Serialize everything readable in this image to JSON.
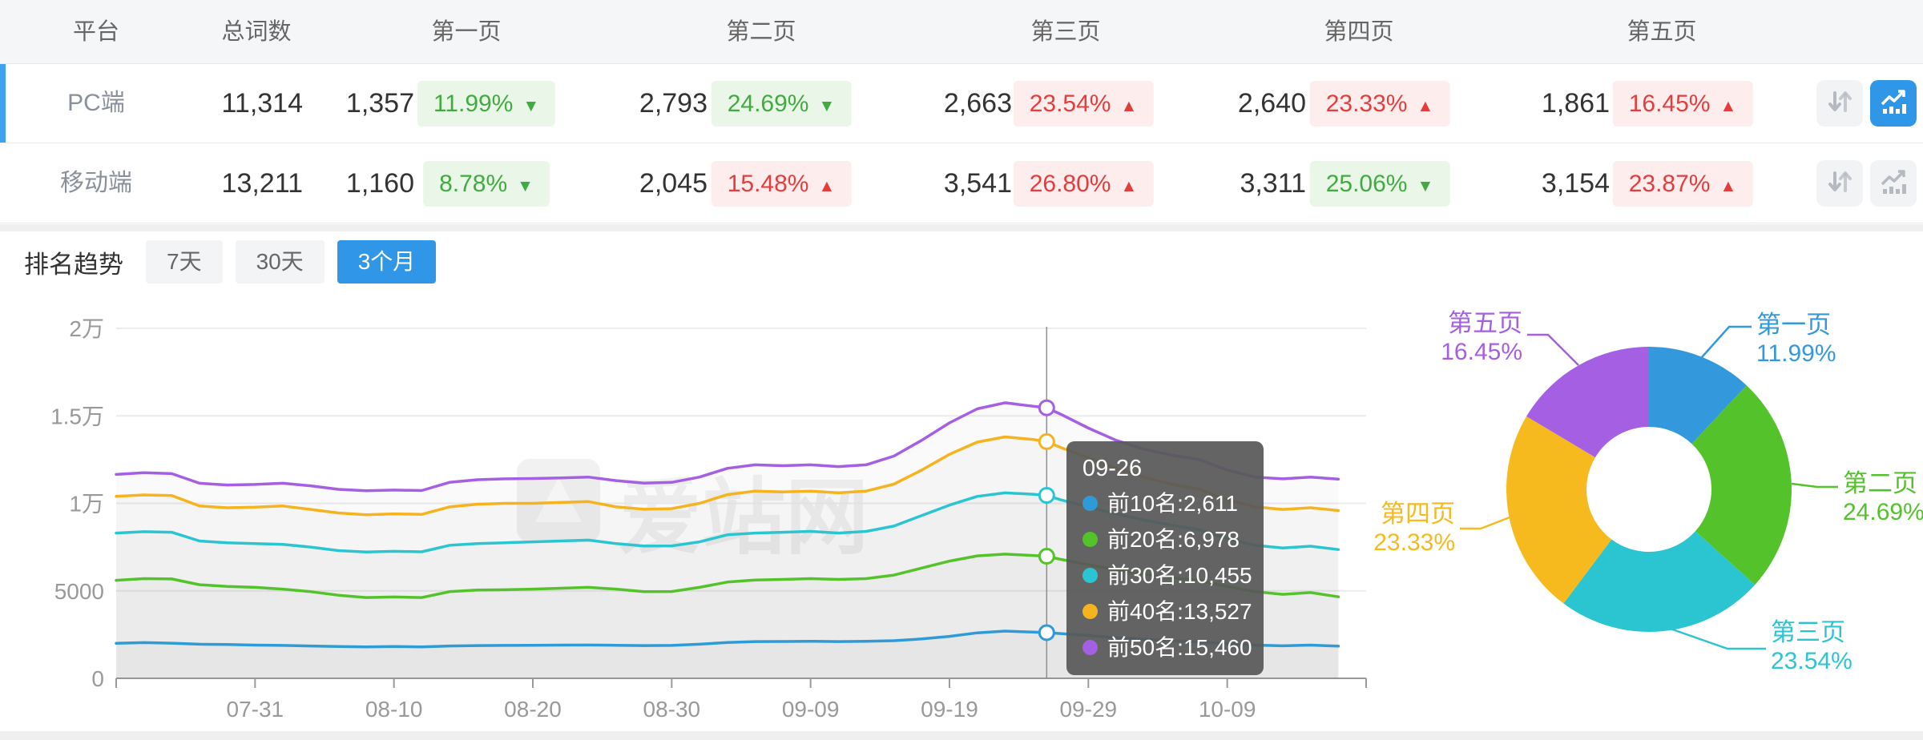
{
  "glyphs": {
    "arrow_up": "▲",
    "arrow_down": "▼"
  },
  "colors": {
    "accent": "#2f96e8",
    "active_row_border": "#3fa2f1",
    "badge_up_text": "#e43d3d",
    "badge_up_bg": "#fdeded",
    "badge_down_text": "#41ab41",
    "badge_down_bg": "#eaf7e8",
    "series_blue": "#2e9bd6",
    "series_green": "#54c32b",
    "series_cyan": "#2bc5d2",
    "series_yellow": "#f6b320",
    "series_purple": "#a55fe2"
  },
  "watermark": "爱站网",
  "table": {
    "headers": [
      "平台",
      "总词数",
      "第一页",
      "第二页",
      "第三页",
      "第四页",
      "第五页"
    ],
    "rows": [
      {
        "platform": "PC端",
        "total": "11,314",
        "active": true,
        "pages": [
          {
            "count": "1,357",
            "pct": "11.99%",
            "trend": "down"
          },
          {
            "count": "2,793",
            "pct": "24.69%",
            "trend": "down"
          },
          {
            "count": "2,663",
            "pct": "23.54%",
            "trend": "up"
          },
          {
            "count": "2,640",
            "pct": "23.33%",
            "trend": "up"
          },
          {
            "count": "1,861",
            "pct": "16.45%",
            "trend": "up"
          }
        ]
      },
      {
        "platform": "移动端",
        "total": "13,211",
        "active": false,
        "pages": [
          {
            "count": "1,160",
            "pct": "8.78%",
            "trend": "down"
          },
          {
            "count": "2,045",
            "pct": "15.48%",
            "trend": "up"
          },
          {
            "count": "3,541",
            "pct": "26.80%",
            "trend": "up"
          },
          {
            "count": "3,311",
            "pct": "25.06%",
            "trend": "down"
          },
          {
            "count": "3,154",
            "pct": "23.87%",
            "trend": "up"
          }
        ]
      }
    ]
  },
  "trend": {
    "title": "排名趋势",
    "tabs": [
      "7天",
      "30天",
      "3个月"
    ],
    "active_tab": "3个月"
  },
  "tooltip": {
    "date": "09-26",
    "separator": ": ",
    "items": [
      {
        "label": "前10名",
        "value": "2,611",
        "color": "#2e9bd6"
      },
      {
        "label": "前20名",
        "value": "6,978",
        "color": "#54c32b"
      },
      {
        "label": "前30名",
        "value": "10,455",
        "color": "#2bc5d2"
      },
      {
        "label": "前40名",
        "value": "13,527",
        "color": "#f6b320"
      },
      {
        "label": "前50名",
        "value": "15,460",
        "color": "#a55fe2"
      }
    ]
  },
  "chart_data": [
    {
      "type": "line",
      "title": "排名趋势 3个月",
      "ylim": [
        0,
        20000
      ],
      "grid": true,
      "y_ticks": [
        {
          "v": 0,
          "label": "0"
        },
        {
          "v": 5000,
          "label": "5000"
        },
        {
          "v": 10000,
          "label": "1万"
        },
        {
          "v": 15000,
          "label": "1.5万"
        },
        {
          "v": 20000,
          "label": "2万"
        }
      ],
      "x_tick_labels": [
        "07-31",
        "08-10",
        "08-20",
        "08-30",
        "09-09",
        "09-19",
        "09-29",
        "10-09"
      ],
      "x_tick_days": [
        10,
        20,
        30,
        40,
        50,
        60,
        70,
        80
      ],
      "x_range_days": [
        0,
        88
      ],
      "hover_day": 67,
      "hover_date": "09-26",
      "days": [
        0,
        2,
        4,
        6,
        8,
        10,
        12,
        14,
        16,
        18,
        20,
        22,
        24,
        26,
        28,
        30,
        32,
        34,
        36,
        38,
        40,
        42,
        44,
        46,
        48,
        50,
        52,
        54,
        56,
        58,
        60,
        62,
        64,
        66,
        67,
        68,
        70,
        72,
        74,
        76,
        78,
        80,
        82,
        84,
        86,
        88
      ],
      "series": [
        {
          "name": "前10名",
          "color": "#2e9bd6",
          "values": [
            2000,
            2040,
            2010,
            1950,
            1930,
            1900,
            1880,
            1850,
            1820,
            1800,
            1815,
            1800,
            1850,
            1870,
            1880,
            1890,
            1900,
            1905,
            1890,
            1870,
            1880,
            1950,
            2050,
            2100,
            2105,
            2120,
            2100,
            2120,
            2150,
            2250,
            2400,
            2600,
            2700,
            2640,
            2611,
            2560,
            2450,
            2330,
            2230,
            2150,
            2080,
            1980,
            1900,
            1860,
            1900,
            1840
          ]
        },
        {
          "name": "前20名",
          "color": "#54c32b",
          "values": [
            5600,
            5700,
            5680,
            5350,
            5250,
            5200,
            5100,
            4950,
            4750,
            4620,
            4650,
            4620,
            4950,
            5050,
            5060,
            5100,
            5150,
            5200,
            5100,
            4950,
            4960,
            5200,
            5500,
            5620,
            5650,
            5700,
            5650,
            5700,
            5900,
            6300,
            6700,
            7000,
            7100,
            7020,
            6978,
            6800,
            6500,
            6200,
            5950,
            5750,
            5600,
            5250,
            4950,
            4800,
            4900,
            4660
          ]
        },
        {
          "name": "前30名",
          "color": "#2bc5d2",
          "values": [
            8300,
            8380,
            8350,
            7850,
            7750,
            7700,
            7650,
            7500,
            7300,
            7220,
            7260,
            7230,
            7600,
            7700,
            7750,
            7800,
            7850,
            7900,
            7700,
            7560,
            7570,
            7800,
            8200,
            8300,
            8350,
            8400,
            8300,
            8400,
            8700,
            9300,
            9900,
            10400,
            10600,
            10520,
            10455,
            10200,
            9800,
            9400,
            9050,
            8750,
            8500,
            8000,
            7600,
            7450,
            7550,
            7360
          ]
        },
        {
          "name": "前40名",
          "color": "#f6b320",
          "values": [
            10400,
            10480,
            10450,
            9850,
            9750,
            9780,
            9850,
            9650,
            9450,
            9350,
            9400,
            9370,
            9800,
            9950,
            10000,
            10000,
            10050,
            10100,
            9800,
            9660,
            9700,
            10000,
            10500,
            10700,
            10650,
            10700,
            10600,
            10700,
            11100,
            11900,
            12800,
            13500,
            13800,
            13650,
            13527,
            13200,
            12600,
            12000,
            11500,
            11100,
            10800,
            10200,
            9800,
            9650,
            9750,
            9590
          ]
        },
        {
          "name": "前50名",
          "color": "#a55fe2",
          "values": [
            11650,
            11750,
            11700,
            11150,
            11050,
            11080,
            11150,
            11000,
            10800,
            10720,
            10760,
            10730,
            11200,
            11350,
            11400,
            11420,
            11450,
            11500,
            11300,
            11160,
            11200,
            11500,
            12000,
            12200,
            12150,
            12200,
            12100,
            12200,
            12700,
            13600,
            14600,
            15400,
            15750,
            15550,
            15460,
            15100,
            14300,
            13600,
            13100,
            12750,
            12500,
            11900,
            11500,
            11400,
            11500,
            11380
          ]
        }
      ]
    },
    {
      "type": "pie",
      "donut": true,
      "categories": [
        "第一页",
        "第二页",
        "第三页",
        "第四页",
        "第五页"
      ],
      "values": [
        11.99,
        24.69,
        23.54,
        23.33,
        16.45
      ],
      "labels": [
        "11.99%",
        "24.69%",
        "23.54%",
        "23.33%",
        "16.45%"
      ],
      "colors": [
        "#3398dc",
        "#54c32b",
        "#2bc5d2",
        "#f6b91e",
        "#a55fe2"
      ],
      "legend_position": "callout-labels"
    }
  ]
}
